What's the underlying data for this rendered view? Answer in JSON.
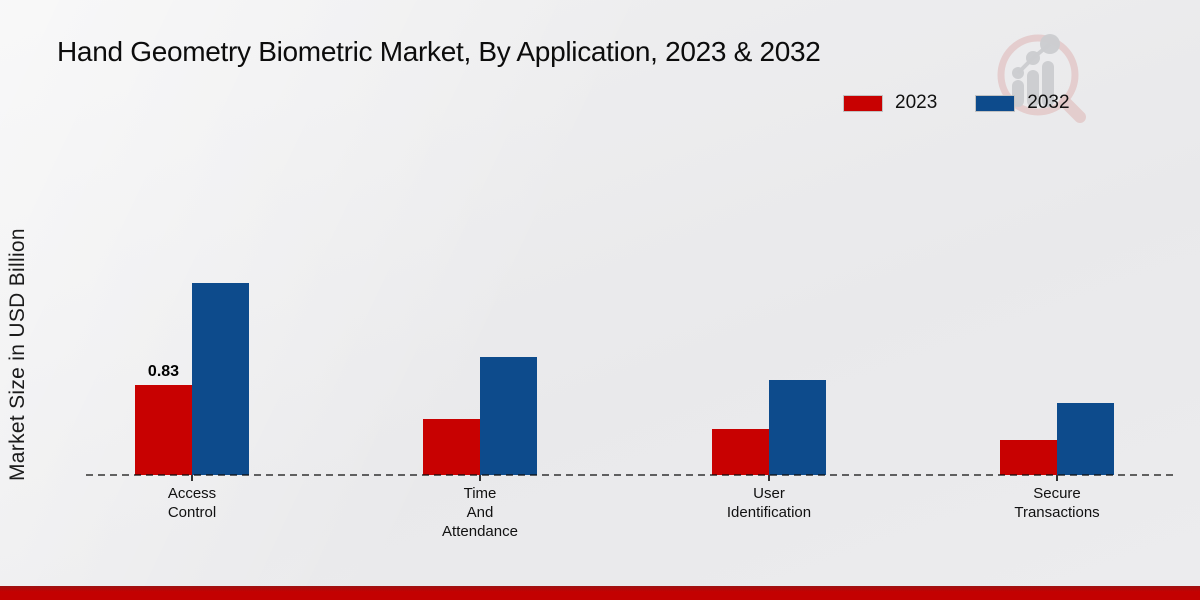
{
  "header": {
    "title": "Hand Geometry Biometric Market, By Application, 2023 & 2032"
  },
  "chart_data": {
    "type": "bar",
    "title": "Hand Geometry Biometric Market, By Application, 2023 & 2032",
    "xlabel": "",
    "ylabel": "Market Size in USD Billion",
    "categories": [
      "Access Control",
      "Time And Attendance",
      "User Identification",
      "Secure Transactions"
    ],
    "series": [
      {
        "name": "2023",
        "color": "#c80101",
        "values": [
          0.83,
          0.52,
          0.42,
          0.32
        ],
        "data_labels": [
          "0.83",
          "",
          "",
          ""
        ]
      },
      {
        "name": "2032",
        "color": "#0d4b8c",
        "values": [
          1.77,
          1.09,
          0.88,
          0.66
        ],
        "data_labels": [
          "",
          "",
          "",
          ""
        ]
      }
    ],
    "ylim": [
      0,
      2
    ],
    "grid": false,
    "y_axis_ticks_visible": false,
    "baseline_style": "dashed",
    "legend_position": "top-right"
  },
  "watermark": {
    "icon": "magnifier-bar-chart-logo"
  },
  "footer": {
    "bar_color": "#c30101"
  }
}
